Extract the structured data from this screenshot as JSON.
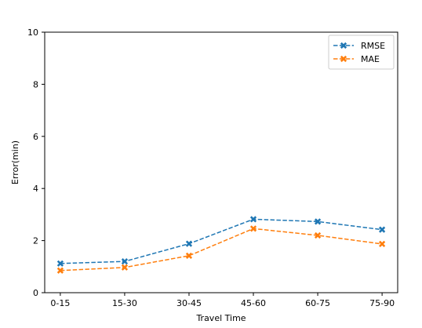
{
  "chart_data": {
    "type": "line",
    "title": "",
    "xlabel": "Travel Time",
    "ylabel": "Error(min)",
    "categories": [
      "0-15",
      "15-30",
      "30-45",
      "45-60",
      "60-75",
      "75-90"
    ],
    "ylim": [
      0,
      10
    ],
    "yticks": [
      0,
      2,
      4,
      6,
      8,
      10
    ],
    "grid": false,
    "legend_position": "top-right",
    "series": [
      {
        "name": "RMSE",
        "color": "#1f77b4",
        "linestyle": "dashed",
        "marker": "x-filled",
        "values": [
          1.12,
          1.2,
          1.88,
          2.82,
          2.73,
          2.42
        ]
      },
      {
        "name": "MAE",
        "color": "#ff7f0e",
        "linestyle": "dashed",
        "marker": "x-filled",
        "values": [
          0.85,
          0.97,
          1.42,
          2.46,
          2.2,
          1.87
        ]
      }
    ]
  }
}
